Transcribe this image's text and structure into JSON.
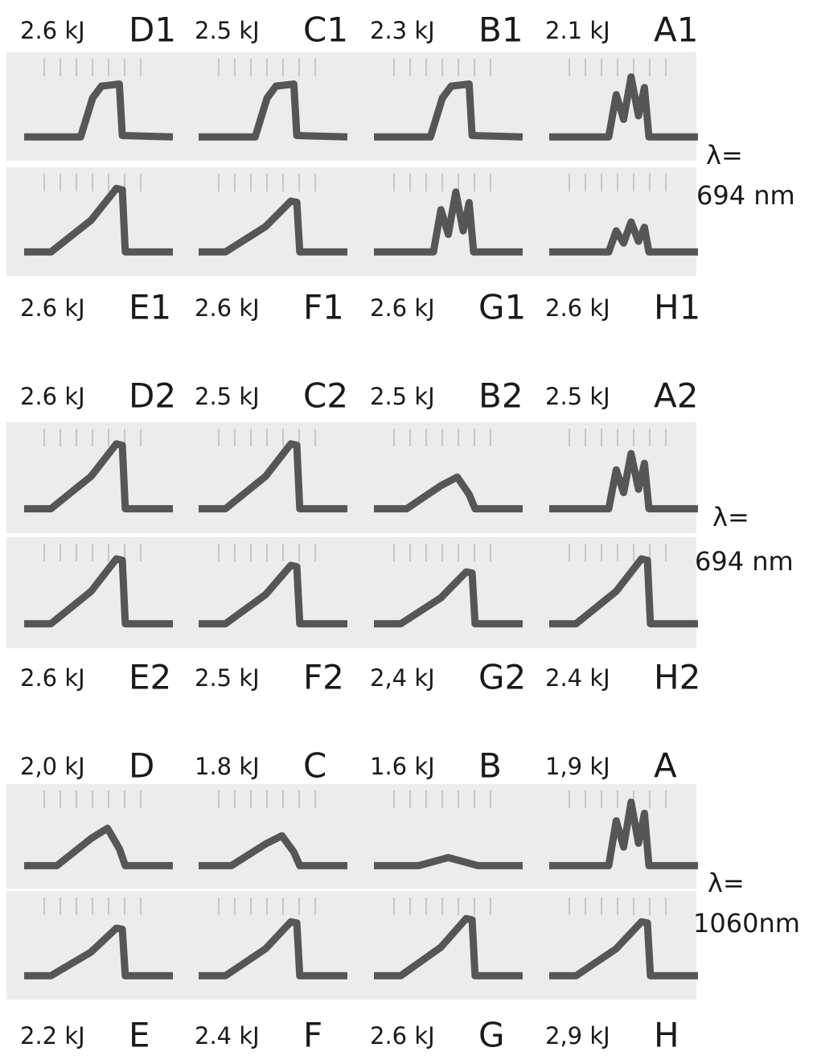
{
  "groups": [
    {
      "top": [
        {
          "energy": "2.6 kJ",
          "id": "D1"
        },
        {
          "energy": "2.5 kJ",
          "id": "C1"
        },
        {
          "energy": "2.3 kJ",
          "id": "B1"
        },
        {
          "energy": "2.1 kJ",
          "id": "A1"
        }
      ],
      "bottom": [
        {
          "energy": "2.6 kJ",
          "id": "E1"
        },
        {
          "energy": "2.6 kJ",
          "id": "F1"
        },
        {
          "energy": "2.6 kJ",
          "id": "G1"
        },
        {
          "energy": "2.6 kJ",
          "id": "H1"
        }
      ],
      "wavelength": [
        "λ=",
        "694 nm"
      ]
    },
    {
      "top": [
        {
          "energy": "2.6 kJ",
          "id": "D2"
        },
        {
          "energy": "2.5 kJ",
          "id": "C2"
        },
        {
          "energy": "2.5 kJ",
          "id": "B2"
        },
        {
          "energy": "2.5 kJ",
          "id": "A2"
        }
      ],
      "bottom": [
        {
          "energy": "2.6 kJ",
          "id": "E2"
        },
        {
          "energy": "2.5 kJ",
          "id": "F2"
        },
        {
          "energy": "2,4 kJ",
          "id": "G2"
        },
        {
          "energy": "2.4 kJ",
          "id": "H2"
        }
      ],
      "wavelength": [
        "λ=",
        "694 nm"
      ]
    },
    {
      "top": [
        {
          "energy": "2,0 kJ",
          "id": "D"
        },
        {
          "energy": "1.8 kJ",
          "id": "C"
        },
        {
          "energy": "1.6 kJ",
          "id": "B"
        },
        {
          "energy": "1,9 kJ",
          "id": "A"
        }
      ],
      "bottom": [
        {
          "energy": "2.2 kJ",
          "id": "E"
        },
        {
          "energy": "2.4 kJ",
          "id": "F"
        },
        {
          "energy": "2.6 kJ",
          "id": "G"
        },
        {
          "energy": "2,9 kJ",
          "id": "H"
        }
      ],
      "wavelength": [
        "λ=",
        "1060nm"
      ]
    }
  ]
}
